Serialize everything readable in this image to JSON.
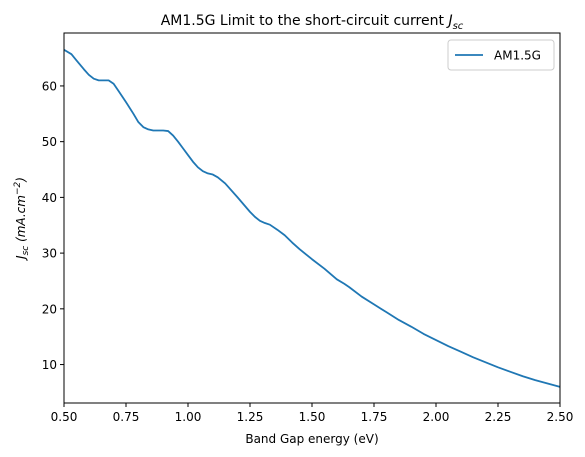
{
  "chart_data": {
    "type": "line",
    "title_main": "AM1.5G Limit to the short-circuit current ",
    "title_symbol": "J",
    "title_sub": "sc",
    "xlabel": "Band Gap energy (eV)",
    "ylabel_symbol": "J",
    "ylabel_sub": "sc",
    "ylabel_units_main": " (mA.cm",
    "ylabel_units_sup": "−2",
    "ylabel_units_end": ")",
    "xlim": [
      0.5,
      2.5
    ],
    "ylim": [
      3.1,
      69.5
    ],
    "x_ticks": [
      "0.50",
      "0.75",
      "1.00",
      "1.25",
      "1.50",
      "1.75",
      "2.00",
      "2.25",
      "2.50"
    ],
    "y_ticks": [
      "10",
      "20",
      "30",
      "40",
      "50",
      "60"
    ],
    "grid": false,
    "legend_position": "top-right",
    "series": [
      {
        "name": "AM1.5G",
        "color": "#1f77b4",
        "x": [
          0.5,
          0.53,
          0.55,
          0.58,
          0.6,
          0.62,
          0.64,
          0.66,
          0.68,
          0.7,
          0.72,
          0.75,
          0.78,
          0.8,
          0.82,
          0.84,
          0.86,
          0.88,
          0.9,
          0.92,
          0.94,
          0.96,
          0.98,
          1.0,
          1.02,
          1.04,
          1.06,
          1.08,
          1.1,
          1.12,
          1.15,
          1.2,
          1.25,
          1.27,
          1.29,
          1.31,
          1.33,
          1.36,
          1.39,
          1.42,
          1.45,
          1.5,
          1.55,
          1.6,
          1.63,
          1.65,
          1.7,
          1.75,
          1.8,
          1.85,
          1.9,
          1.95,
          2.0,
          2.05,
          2.1,
          2.15,
          2.2,
          2.25,
          2.3,
          2.35,
          2.4,
          2.45,
          2.5
        ],
        "y": [
          66.5,
          65.7,
          64.6,
          63.0,
          62.0,
          61.3,
          61.0,
          61.0,
          61.0,
          60.4,
          59.1,
          57.1,
          55.0,
          53.5,
          52.6,
          52.2,
          52.0,
          52.0,
          52.0,
          51.9,
          51.1,
          50.0,
          48.8,
          47.6,
          46.4,
          45.4,
          44.7,
          44.3,
          44.1,
          43.6,
          42.5,
          40.0,
          37.4,
          36.5,
          35.8,
          35.4,
          35.1,
          34.2,
          33.2,
          31.9,
          30.7,
          28.9,
          27.2,
          25.3,
          24.5,
          23.9,
          22.2,
          20.8,
          19.4,
          18.0,
          16.8,
          15.5,
          14.4,
          13.3,
          12.3,
          11.3,
          10.4,
          9.5,
          8.7,
          7.9,
          7.2,
          6.6,
          6.0
        ]
      }
    ]
  }
}
